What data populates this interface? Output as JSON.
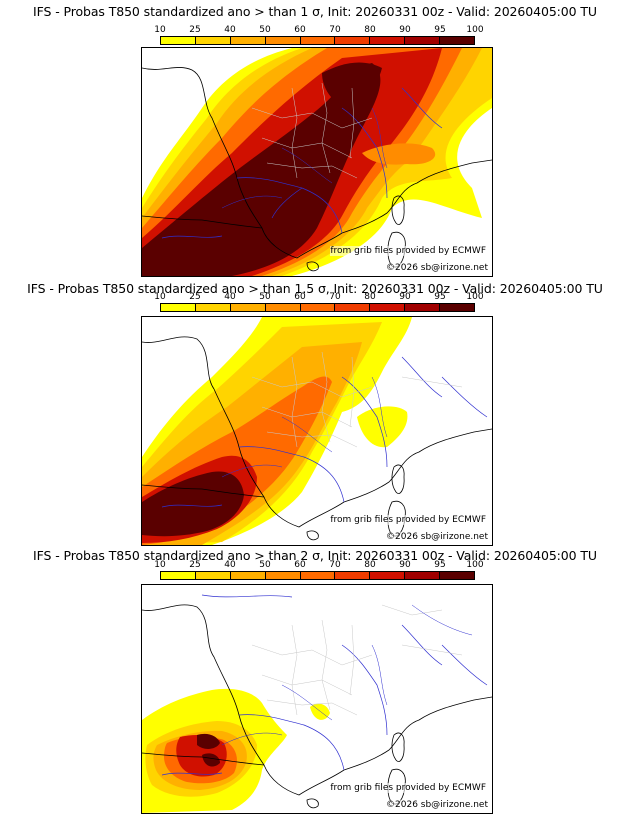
{
  "panels": [
    {
      "title": "IFS - Probas T850  standardized ano > than 1 σ, Init: 20260331 00z - Valid: 20260405:00 TU",
      "threshold": "1 σ"
    },
    {
      "title": "IFS - Probas T850  standardized ano > than 1.5 σ, Init: 20260331 00z - Valid: 20260405:00 TU",
      "threshold": "1.5 σ"
    },
    {
      "title": "IFS - Probas T850  standardized ano > than 2 σ, Init: 20260331 00z - Valid: 20260405:00 TU",
      "threshold": "2 σ"
    }
  ],
  "legend": {
    "labels": [
      "10",
      "25",
      "40",
      "50",
      "60",
      "70",
      "80",
      "90",
      "95",
      "100"
    ],
    "colors": [
      "#ffff00",
      "#ffd400",
      "#ffb000",
      "#ff8c00",
      "#ff6a00",
      "#f03c00",
      "#d01000",
      "#a00000",
      "#5a0000"
    ]
  },
  "credits": {
    "source": "from grib files provided by ECMWF",
    "copyright": "©2026 sb@irizone.net"
  }
}
